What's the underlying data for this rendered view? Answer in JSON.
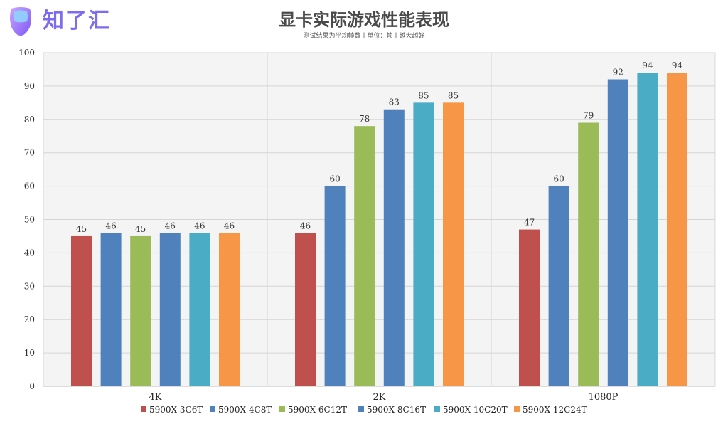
{
  "brand": {
    "logo_text": "知了汇"
  },
  "chart_data": {
    "type": "bar",
    "title": "显卡实际游戏性能表现",
    "subtitle": "测试结果为平均帧数丨单位：帧丨越大越好",
    "categories": [
      "4K",
      "2K",
      "1080P"
    ],
    "ylim": [
      0,
      100
    ],
    "yticks": [
      0,
      10,
      20,
      30,
      40,
      50,
      60,
      70,
      80,
      90,
      100
    ],
    "grid": true,
    "legend_position": "bottom",
    "series": [
      {
        "name": "5900X 3C6T",
        "color": "#c0504d",
        "values": [
          45,
          46,
          47
        ]
      },
      {
        "name": "5900X 4C8T",
        "color": "#4f81bd",
        "values": [
          46,
          60,
          60
        ]
      },
      {
        "name": "5900X 6C12T",
        "color": "#9bbb59",
        "values": [
          45,
          78,
          79
        ]
      },
      {
        "name": "5900X 8C16T",
        "color": "#4f81bd",
        "values": [
          46,
          83,
          92
        ]
      },
      {
        "name": "5900X 10C20T",
        "color": "#4bacc6",
        "values": [
          46,
          85,
          94
        ]
      },
      {
        "name": "5900X 12C24T",
        "color": "#f79646",
        "values": [
          46,
          85,
          94
        ]
      }
    ]
  }
}
